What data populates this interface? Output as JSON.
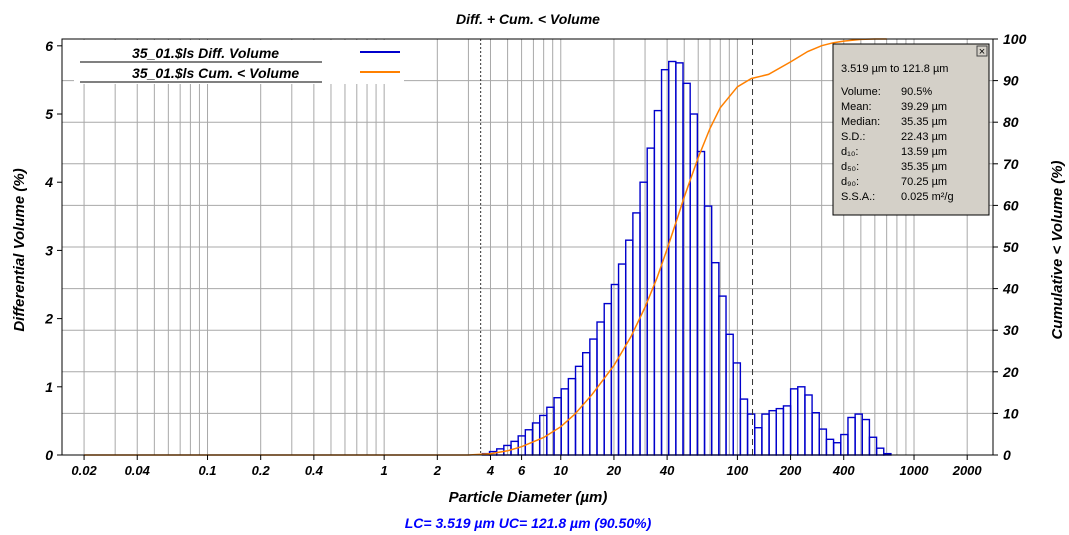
{
  "chart_data": {
    "type": "bar",
    "title": "Diff. + Cum. < Volume",
    "xlabel": "Particle Diameter (µm)",
    "ylabel_left": "Differential Volume (%)",
    "ylabel_right": "Cumulative < Volume (%)",
    "x_scale": "log",
    "xlim": [
      0.015,
      2800
    ],
    "ylim_left": [
      0,
      6.1
    ],
    "ylim_right": [
      0,
      100
    ],
    "grid": true,
    "x_ticks": [
      {
        "value": 0.02,
        "label": "0.02"
      },
      {
        "value": 0.04,
        "label": "0.04"
      },
      {
        "value": 0.1,
        "label": "0.1"
      },
      {
        "value": 0.2,
        "label": "0.2"
      },
      {
        "value": 0.4,
        "label": "0.4"
      },
      {
        "value": 1,
        "label": "1"
      },
      {
        "value": 2,
        "label": "2"
      },
      {
        "value": 4,
        "label": "4"
      },
      {
        "value": 6,
        "label": "6"
      },
      {
        "value": 10,
        "label": "10"
      },
      {
        "value": 20,
        "label": "20"
      },
      {
        "value": 40,
        "label": "40"
      },
      {
        "value": 100,
        "label": "100"
      },
      {
        "value": 200,
        "label": "200"
      },
      {
        "value": 400,
        "label": "400"
      },
      {
        "value": 1000,
        "label": "1000"
      },
      {
        "value": 2000,
        "label": "2000"
      }
    ],
    "y_ticks_left": [
      "0",
      "1",
      "2",
      "3",
      "4",
      "5",
      "6"
    ],
    "y_ticks_right": [
      "0",
      "10",
      "20",
      "30",
      "40",
      "50",
      "60",
      "70",
      "80",
      "90",
      "100"
    ],
    "legend": {
      "position": "top-left",
      "entries": [
        {
          "label": "35_01.$ls Diff. Volume",
          "color": "#0000cc"
        },
        {
          "label": "35_01.$ls Cum. < Volume",
          "color": "#ff8000"
        }
      ]
    },
    "markers": {
      "lower": 3.519,
      "upper": 121.8
    },
    "series": [
      {
        "name": "35_01.$ls Diff. Volume",
        "axis": "left",
        "style": "histogram",
        "color": "#0000cc",
        "bins": [
          [
            3.6,
            0.02
          ],
          [
            3.95,
            0.05
          ],
          [
            4.34,
            0.09
          ],
          [
            4.76,
            0.14
          ],
          [
            5.23,
            0.2
          ],
          [
            5.74,
            0.28
          ],
          [
            6.3,
            0.37
          ],
          [
            6.92,
            0.47
          ],
          [
            7.6,
            0.58
          ],
          [
            8.34,
            0.7
          ],
          [
            9.16,
            0.84
          ],
          [
            10.06,
            0.97
          ],
          [
            11.04,
            1.12
          ],
          [
            12.12,
            1.3
          ],
          [
            13.31,
            1.5
          ],
          [
            14.61,
            1.7
          ],
          [
            16.04,
            1.95
          ],
          [
            17.62,
            2.22
          ],
          [
            19.34,
            2.5
          ],
          [
            21.24,
            2.8
          ],
          [
            23.32,
            3.15
          ],
          [
            25.6,
            3.55
          ],
          [
            28.11,
            4.0
          ],
          [
            30.86,
            4.5
          ],
          [
            33.89,
            5.05
          ],
          [
            37.2,
            5.65
          ],
          [
            40.85,
            5.77
          ],
          [
            44.85,
            5.75
          ],
          [
            49.24,
            5.45
          ],
          [
            54.07,
            5.0
          ],
          [
            59.37,
            4.45
          ],
          [
            65.18,
            3.65
          ],
          [
            71.57,
            2.82
          ],
          [
            78.58,
            2.33
          ],
          [
            86.28,
            1.77
          ],
          [
            94.73,
            1.35
          ],
          [
            104.0,
            0.82
          ],
          [
            114.2,
            0.6
          ],
          [
            125.4,
            0.4
          ],
          [
            137.7,
            0.6
          ],
          [
            151.2,
            0.65
          ],
          [
            166.0,
            0.68
          ],
          [
            182.3,
            0.72
          ],
          [
            200.1,
            0.97
          ],
          [
            219.7,
            1.0
          ],
          [
            241.3,
            0.88
          ],
          [
            264.9,
            0.62
          ],
          [
            290.8,
            0.38
          ],
          [
            319.3,
            0.23
          ],
          [
            350.6,
            0.18
          ],
          [
            385.0,
            0.3
          ],
          [
            422.7,
            0.55
          ],
          [
            464.1,
            0.6
          ],
          [
            509.5,
            0.52
          ],
          [
            559.4,
            0.26
          ],
          [
            614.2,
            0.1
          ],
          [
            674.4,
            0.02
          ]
        ]
      },
      {
        "name": "35_01.$ls Cum. < Volume",
        "axis": "right",
        "style": "line",
        "color": "#ff8000",
        "x": [
          0.02,
          1,
          3,
          4,
          5,
          6,
          8,
          10,
          12,
          15,
          20,
          25,
          30,
          35,
          40,
          45,
          50,
          60,
          70,
          80,
          100,
          120,
          150,
          200,
          250,
          300,
          350,
          400,
          500,
          600,
          700
        ],
        "y": [
          0,
          0,
          0,
          0.3,
          1.0,
          2.0,
          4.2,
          6.8,
          9.8,
          14.5,
          21.5,
          28.5,
          35.5,
          42.5,
          49.5,
          56.0,
          62.0,
          71.5,
          78.5,
          83.5,
          88.5,
          90.5,
          91.5,
          94.5,
          97.0,
          98.4,
          99.1,
          99.5,
          99.9,
          100,
          100
        ]
      }
    ],
    "stats_box": {
      "title": "3.519 µm to 121.8 µm",
      "rows": [
        {
          "label": "Volume:",
          "value": "90.5%"
        },
        {
          "label": "Mean:",
          "value": "39.29 µm"
        },
        {
          "label": "Median:",
          "value": "35.35 µm"
        },
        {
          "label": "S.D.:",
          "value": "22.43 µm"
        },
        {
          "label": "d₁₀:",
          "value": "13.59 µm"
        },
        {
          "label": "d₅₀:",
          "value": "35.35 µm"
        },
        {
          "label": "d₉₀:",
          "value": "70.25 µm"
        },
        {
          "label": "S.S.A.:",
          "value": "0.025  m²/g"
        }
      ],
      "close_glyph": "×"
    },
    "footer": "LC= 3.519 µm   UC= 121.8 µm (90.50%)"
  }
}
